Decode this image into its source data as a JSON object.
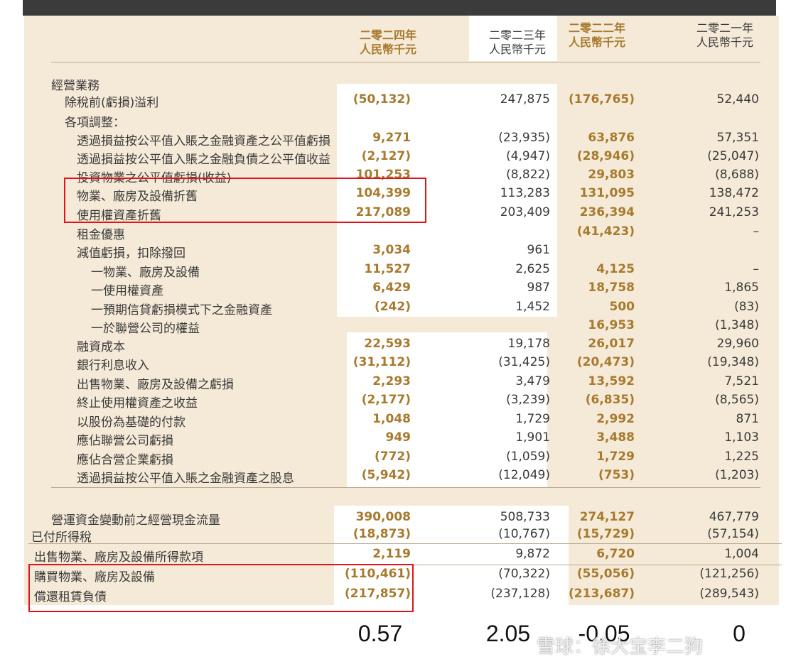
{
  "headers": [
    {
      "year": "二零二四年",
      "unit": "人民幣千元"
    },
    {
      "year": "二零二三年",
      "unit": "人民幣千元"
    },
    {
      "year": "二零二二年",
      "unit": "人民幣千元"
    },
    {
      "year": "二零二一年",
      "unit": "人民幣千元"
    }
  ],
  "rows": [
    {
      "label": "經營業務",
      "v": [
        "",
        "",
        "",
        ""
      ]
    },
    {
      "label": "除稅前(虧損)溢利",
      "v": [
        "(50,132)",
        "247,875",
        "(176,765)",
        "52,440"
      ]
    },
    {
      "label": "各項調整：",
      "v": [
        "",
        "",
        "",
        ""
      ]
    },
    {
      "label": "透過損益按公平值入賬之金融資產之公平值虧損",
      "v": [
        "9,271",
        "(23,935)",
        "63,876",
        "57,351"
      ]
    },
    {
      "label": "透過損益按公平值入賬之金融負債之公平值收益",
      "v": [
        "(2,127)",
        "(4,947)",
        "(28,946)",
        "(25,047)"
      ]
    },
    {
      "label": "投資物業之公平值虧損(收益)",
      "v": [
        "101,253",
        "(8,822)",
        "29,803",
        "(8,688)"
      ]
    },
    {
      "label": "物業、廠房及設備折舊",
      "v": [
        "104,399",
        "113,283",
        "131,095",
        "138,472"
      ]
    },
    {
      "label": "使用權資產折舊",
      "v": [
        "217,089",
        "203,409",
        "236,394",
        "241,253"
      ]
    },
    {
      "label": "租金優惠",
      "v": [
        "",
        "",
        "(41,423)",
        "–"
      ]
    },
    {
      "label": "減值虧損，扣除撥回",
      "v": [
        "3,034",
        "961",
        "",
        ""
      ]
    },
    {
      "label": "一物業、廠房及設備",
      "v": [
        "11,527",
        "2,625",
        "4,125",
        "–"
      ]
    },
    {
      "label": "一使用權資產",
      "v": [
        "6,429",
        "987",
        "18,758",
        "1,865"
      ]
    },
    {
      "label": "一預期信貸虧損模式下之金融資產",
      "v": [
        "(242)",
        "1,452",
        "500",
        "(83)"
      ]
    },
    {
      "label": "一於聯營公司的權益",
      "v": [
        "",
        "",
        "16,953",
        "(1,348)"
      ]
    },
    {
      "label": "融資成本",
      "v": [
        "22,593",
        "19,178",
        "26,017",
        "29,960"
      ]
    },
    {
      "label": "銀行利息收入",
      "v": [
        "(31,112)",
        "(31,425)",
        "(20,473)",
        "(19,348)"
      ]
    },
    {
      "label": "出售物業、廠房及設備之虧損",
      "v": [
        "2,293",
        "3,479",
        "13,592",
        "7,521"
      ]
    },
    {
      "label": "終止使用權資產之收益",
      "v": [
        "(2,177)",
        "(3,239)",
        "(6,835)",
        "(8,565)"
      ]
    },
    {
      "label": "以股份為基礎的付款",
      "v": [
        "1,048",
        "1,729",
        "2,992",
        "871"
      ]
    },
    {
      "label": "應佔聯營公司虧損",
      "v": [
        "949",
        "1,901",
        "3,488",
        "1,103"
      ]
    },
    {
      "label": "應佔合營企業虧損",
      "v": [
        "(772)",
        "(1,059)",
        "1,729",
        "1,225"
      ]
    },
    {
      "label": "透過損益按公平值入賬之金融資產之股息",
      "v": [
        "(5,942)",
        "(12,049)",
        "(753)",
        "(1,203)"
      ]
    },
    {
      "label": "營運資金變動前之經營現金流量",
      "v": [
        "390,008",
        "508,733",
        "274,127",
        "467,779"
      ]
    },
    {
      "label": "已付所得稅",
      "v": [
        "(18,873)",
        "(10,767)",
        "(15,729)",
        "(57,154)"
      ]
    },
    {
      "label": "出售物業、廠房及設備所得款項",
      "v": [
        "2,119",
        "9,872",
        "6,720",
        "1,004"
      ]
    },
    {
      "label": "購買物業、廠房及設備",
      "v": [
        "(110,461)",
        "(70,322)",
        "(55,056)",
        "(121,256)"
      ]
    },
    {
      "label": "償還租賃負債",
      "v": [
        "(217,857)",
        "(237,128)",
        "(213,687)",
        "(289,543)"
      ]
    }
  ],
  "ratios": [
    "0.57",
    "2.05",
    "-0.05",
    "0"
  ],
  "watermark": "雪球：徐大宝李二狗",
  "colors": {
    "gold": "#a77a2e",
    "highlight": "#e0151b",
    "paper": "#f5ead7"
  }
}
